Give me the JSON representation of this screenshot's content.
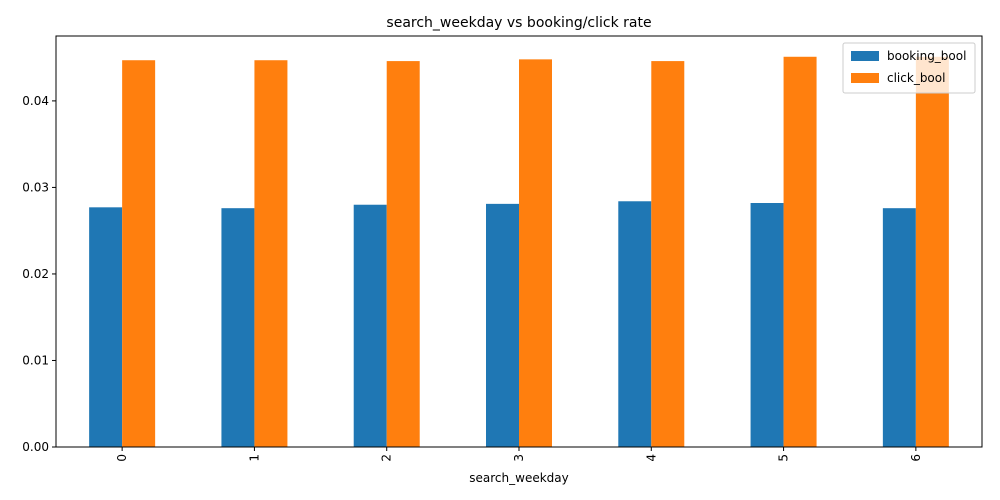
{
  "chart_data": {
    "type": "bar",
    "title": "search_weekday vs booking/click rate",
    "xlabel": "search_weekday",
    "ylabel": "",
    "categories": [
      "0",
      "1",
      "2",
      "3",
      "4",
      "5",
      "6"
    ],
    "series": [
      {
        "name": "booking_bool",
        "color": "#1f77b4",
        "values": [
          0.0277,
          0.0276,
          0.028,
          0.0281,
          0.0284,
          0.0282,
          0.0276
        ]
      },
      {
        "name": "click_bool",
        "color": "#ff7f0e",
        "values": [
          0.0447,
          0.0447,
          0.0446,
          0.0448,
          0.0446,
          0.0451,
          0.0451
        ]
      }
    ],
    "ylim": [
      0,
      0.0475
    ],
    "yticks": [
      "0.00",
      "0.01",
      "0.02",
      "0.03",
      "0.04"
    ],
    "ytick_values": [
      0,
      0.01,
      0.02,
      0.03,
      0.04
    ],
    "grid": false,
    "legend_position": "top-right",
    "xtick_rotation": "vertical"
  }
}
